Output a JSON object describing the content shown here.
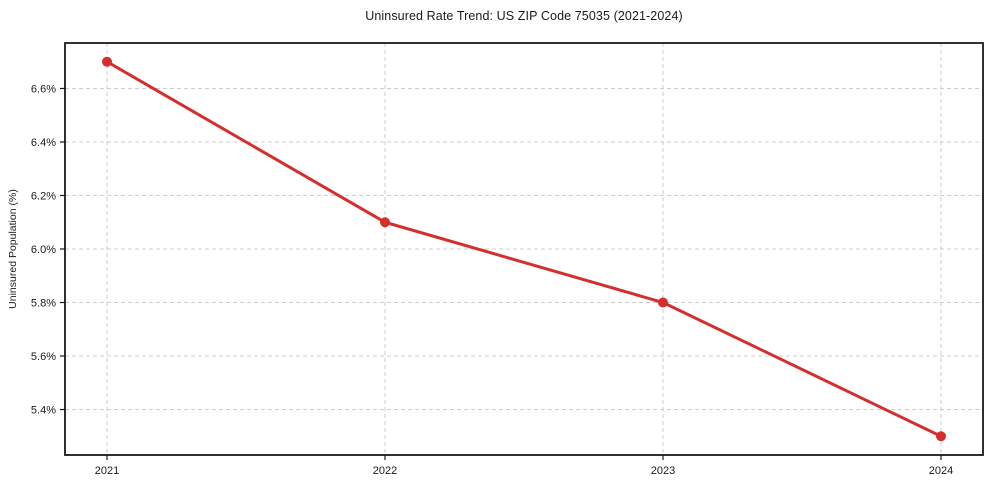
{
  "chart_data": {
    "type": "line",
    "title": "Uninsured Rate Trend: US ZIP Code 75035 (2021-2024)",
    "ylabel": "Uninsured Population (%)",
    "xlabel": "",
    "categories": [
      "2021",
      "2022",
      "2023",
      "2024"
    ],
    "series": [
      {
        "name": "Uninsured Rate",
        "values": [
          6.7,
          6.1,
          5.8,
          5.3
        ]
      }
    ],
    "yticks": [
      {
        "value": 5.4,
        "label": "5.4%"
      },
      {
        "value": 5.6,
        "label": "5.6%"
      },
      {
        "value": 5.8,
        "label": "5.8%"
      },
      {
        "value": 6.0,
        "label": "6.0%"
      },
      {
        "value": 6.2,
        "label": "6.2%"
      },
      {
        "value": 6.4,
        "label": "6.4%"
      },
      {
        "value": 6.6,
        "label": "6.6%"
      }
    ],
    "ylim": [
      5.23,
      6.77
    ],
    "grid": true,
    "grid_style": "dashed",
    "legend_position": "none",
    "colors": {
      "line": "#d32f2f",
      "marker": "#d32f2f",
      "grid": "#cccccc",
      "axis": "#1a1a1a",
      "text": "#1a1a1a",
      "background": "#ffffff"
    }
  }
}
